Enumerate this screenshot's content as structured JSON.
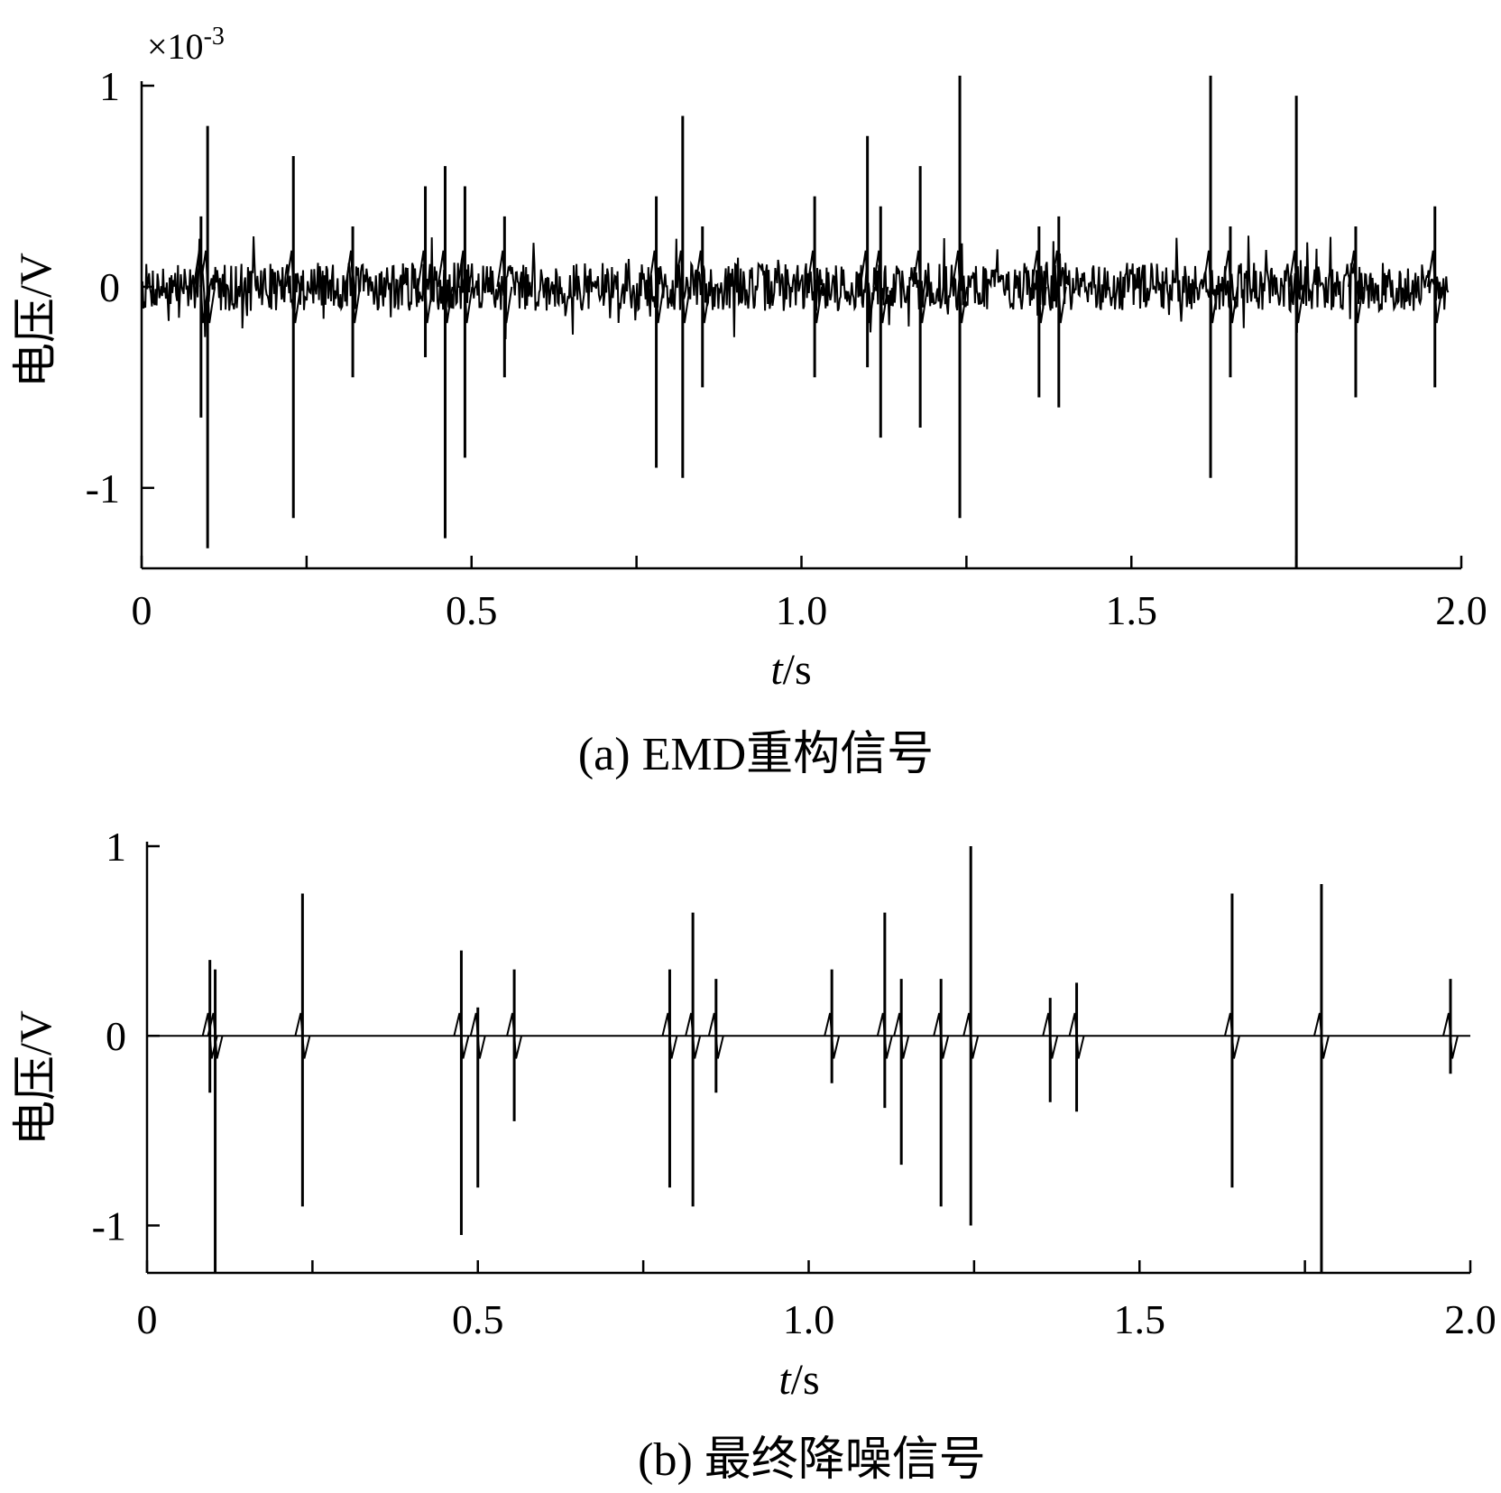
{
  "chart_data": [
    {
      "type": "line",
      "panel": "a",
      "caption": "(a) EMD重构信号",
      "xlabel": "t/s",
      "xlabel_italic": "t",
      "xlabel_unit": "/s",
      "ylabel": "电压/V",
      "y_exponent_prefix": "×10",
      "y_exponent_power": "-3",
      "xlim": [
        0,
        2.0
      ],
      "ylim": [
        -1.4,
        1.0
      ],
      "xticks": [
        0,
        0.5,
        1.0,
        1.5,
        2.0
      ],
      "xtick_labels": [
        "0",
        "0.5",
        "1.0",
        "1.5",
        "2.0"
      ],
      "yticks": [
        -1,
        0,
        1
      ],
      "ytick_labels": [
        "-1",
        "0",
        "1"
      ],
      "noise_band": 0.12,
      "series": [
        {
          "spikes": [
            {
              "x": 0.09,
              "pos": 0.35,
              "neg": -0.65
            },
            {
              "x": 0.1,
              "pos": 0.8,
              "neg": -1.3
            },
            {
              "x": 0.23,
              "pos": 0.65,
              "neg": -1.15
            },
            {
              "x": 0.32,
              "pos": 0.3,
              "neg": -0.45
            },
            {
              "x": 0.43,
              "pos": 0.5,
              "neg": -0.35
            },
            {
              "x": 0.46,
              "pos": 0.6,
              "neg": -1.25
            },
            {
              "x": 0.49,
              "pos": 0.5,
              "neg": -0.85
            },
            {
              "x": 0.55,
              "pos": 0.35,
              "neg": -0.45
            },
            {
              "x": 0.78,
              "pos": 0.45,
              "neg": -0.9
            },
            {
              "x": 0.82,
              "pos": 0.85,
              "neg": -0.95
            },
            {
              "x": 0.85,
              "pos": 0.3,
              "neg": -0.5
            },
            {
              "x": 1.02,
              "pos": 0.45,
              "neg": -0.45
            },
            {
              "x": 1.1,
              "pos": 0.75,
              "neg": -0.4
            },
            {
              "x": 1.12,
              "pos": 0.4,
              "neg": -0.75
            },
            {
              "x": 1.18,
              "pos": 0.6,
              "neg": -0.7
            },
            {
              "x": 1.24,
              "pos": 1.05,
              "neg": -1.15
            },
            {
              "x": 1.36,
              "pos": 0.3,
              "neg": -0.55
            },
            {
              "x": 1.39,
              "pos": 0.35,
              "neg": -0.6
            },
            {
              "x": 1.62,
              "pos": 1.05,
              "neg": -0.95
            },
            {
              "x": 1.65,
              "pos": 0.3,
              "neg": -0.45
            },
            {
              "x": 1.75,
              "pos": 0.95,
              "neg": -1.4
            },
            {
              "x": 1.84,
              "pos": 0.3,
              "neg": -0.55
            },
            {
              "x": 1.96,
              "pos": 0.4,
              "neg": -0.5
            }
          ]
        }
      ]
    },
    {
      "type": "line",
      "panel": "b",
      "caption": "(b) 最终降噪信号",
      "xlabel": "t/s",
      "xlabel_italic": "t",
      "xlabel_unit": "/s",
      "ylabel": "电压/V",
      "xlim": [
        0,
        2.0
      ],
      "ylim": [
        -1.25,
        1.0
      ],
      "xticks": [
        0,
        0.5,
        1.0,
        1.5,
        2.0
      ],
      "xtick_labels": [
        "0",
        "0.5",
        "1.0",
        "1.5",
        "2.0"
      ],
      "yticks": [
        -1,
        0,
        1
      ],
      "ytick_labels": [
        "-1",
        "0",
        "1"
      ],
      "series": [
        {
          "spikes": [
            {
              "x": 0.095,
              "pos": 0.4,
              "neg": -0.3
            },
            {
              "x": 0.103,
              "pos": 0.35,
              "neg": -1.25
            },
            {
              "x": 0.235,
              "pos": 0.75,
              "neg": -0.9
            },
            {
              "x": 0.475,
              "pos": 0.45,
              "neg": -1.05
            },
            {
              "x": 0.5,
              "pos": 0.15,
              "neg": -0.8
            },
            {
              "x": 0.555,
              "pos": 0.35,
              "neg": -0.45
            },
            {
              "x": 0.79,
              "pos": 0.35,
              "neg": -0.8
            },
            {
              "x": 0.825,
              "pos": 0.65,
              "neg": -0.9
            },
            {
              "x": 0.86,
              "pos": 0.3,
              "neg": -0.3
            },
            {
              "x": 1.035,
              "pos": 0.35,
              "neg": -0.25
            },
            {
              "x": 1.115,
              "pos": 0.65,
              "neg": -0.38
            },
            {
              "x": 1.14,
              "pos": 0.3,
              "neg": -0.68
            },
            {
              "x": 1.2,
              "pos": 0.3,
              "neg": -0.9
            },
            {
              "x": 1.245,
              "pos": 1.0,
              "neg": -1.0
            },
            {
              "x": 1.365,
              "pos": 0.2,
              "neg": -0.35
            },
            {
              "x": 1.405,
              "pos": 0.28,
              "neg": -0.4
            },
            {
              "x": 1.64,
              "pos": 0.75,
              "neg": -0.8
            },
            {
              "x": 1.775,
              "pos": 0.8,
              "neg": -1.25
            },
            {
              "x": 1.97,
              "pos": 0.3,
              "neg": -0.2
            }
          ]
        }
      ]
    }
  ]
}
